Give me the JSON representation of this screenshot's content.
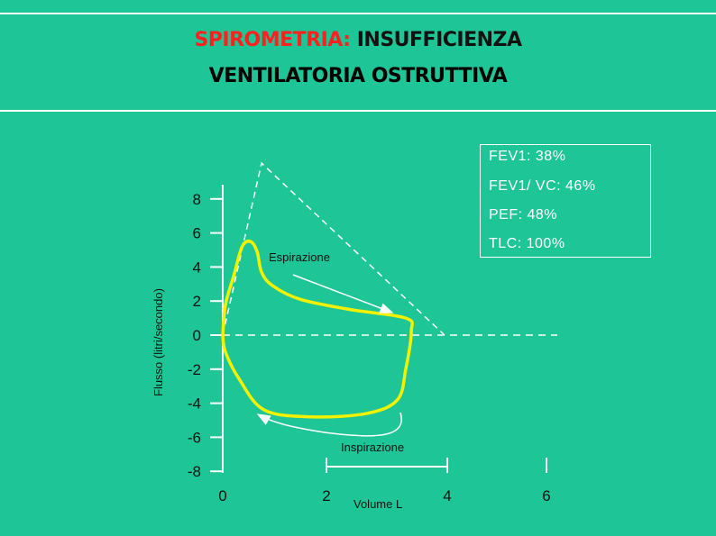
{
  "title": {
    "part1": "SPIROMETRIA:",
    "part2": "INSUFFICIENZA",
    "line2": "VENTILATORIA OSTRUTTIVA"
  },
  "stats": {
    "fev1": "FEV1: 38%",
    "fev1_vc": "FEV1/ VC: 46%",
    "pef": "PEF: 48%",
    "tlc": "TLC: 100%"
  },
  "colors": {
    "background": "#1ec596",
    "loop": "#f2f200",
    "title_red": "#ff2020",
    "lines": "#ffffff"
  },
  "chart_data": {
    "type": "line",
    "xlabel": "Volume L",
    "ylabel": "Flusso (litri/secondo)",
    "xlim": [
      0,
      6
    ],
    "ylim": [
      -8,
      8
    ],
    "x_ticks": [
      0,
      2,
      4,
      6
    ],
    "y_ticks": [
      8,
      6,
      4,
      2,
      0,
      -2,
      -4,
      -6,
      -8
    ],
    "grid": false,
    "annotations": {
      "expiration": "Espirazione",
      "inspiration": "Inspirazione"
    },
    "series": [
      {
        "role": "flow-volume-loop",
        "points": [
          [
            0.0,
            0.0
          ],
          [
            0.05,
            1.8
          ],
          [
            0.2,
            3.5
          ],
          [
            0.35,
            5.2
          ],
          [
            0.5,
            5.5
          ],
          [
            0.62,
            4.9
          ],
          [
            0.7,
            3.7
          ],
          [
            0.9,
            2.9
          ],
          [
            1.4,
            2.1
          ],
          [
            2.3,
            1.5
          ],
          [
            3.3,
            1.0
          ],
          [
            3.4,
            0.2
          ],
          [
            3.3,
            -2.0
          ],
          [
            3.15,
            -3.8
          ],
          [
            2.6,
            -4.6
          ],
          [
            1.6,
            -4.8
          ],
          [
            0.75,
            -4.4
          ],
          [
            0.3,
            -2.6
          ],
          [
            0.05,
            -1.0
          ],
          [
            0.0,
            0.0
          ]
        ]
      },
      {
        "role": "predicted-envelope",
        "points": [
          [
            0.0,
            0.0
          ],
          [
            0.7,
            10.1
          ],
          [
            4.0,
            0.0
          ]
        ]
      }
    ]
  }
}
